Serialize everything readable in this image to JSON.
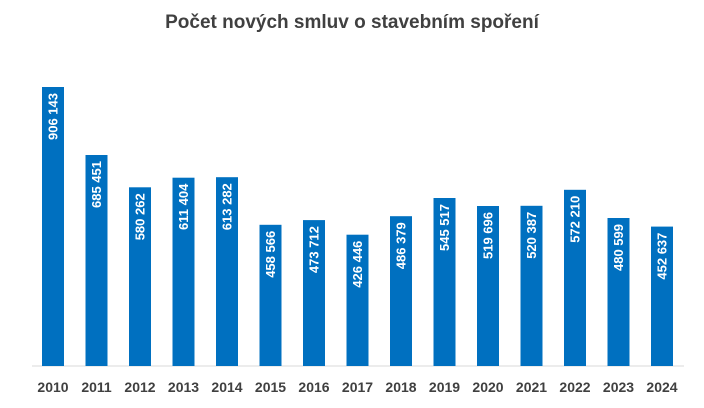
{
  "chart_data": {
    "type": "bar",
    "title": "Počet nových smluv o stavebním spoření",
    "categories": [
      "2010",
      "2011",
      "2012",
      "2013",
      "2014",
      "2015",
      "2016",
      "2017",
      "2018",
      "2019",
      "2020",
      "2021",
      "2022",
      "2023",
      "2024"
    ],
    "values": [
      906143,
      685451,
      580262,
      611404,
      613282,
      458566,
      473712,
      426446,
      486379,
      545517,
      519696,
      520387,
      572210,
      480599,
      452637
    ],
    "data_labels": [
      "906 143",
      "685 451",
      "580 262",
      "611 404",
      "613 282",
      "458 566",
      "473 712",
      "426 446",
      "486 379",
      "545 517",
      "519 696",
      "520 387",
      "572 210",
      "480 599",
      "452 637"
    ],
    "ylim": [
      0,
      906143
    ],
    "grid": false,
    "legend": "none",
    "bar_color": "#0070C0",
    "axis_color": "#D9D9D9"
  }
}
